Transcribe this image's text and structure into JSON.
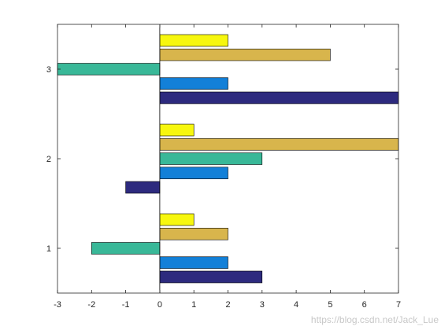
{
  "chart_data": {
    "type": "bar",
    "orientation": "horizontal",
    "categories": [
      "1",
      "2",
      "3"
    ],
    "series": [
      {
        "values": [
          3,
          -1,
          7
        ],
        "color": "#2d2a7e"
      },
      {
        "values": [
          2,
          2,
          2
        ],
        "color": "#1380d8"
      },
      {
        "values": [
          -2,
          3,
          -3
        ],
        "color": "#39b898"
      },
      {
        "values": [
          2,
          7,
          5
        ],
        "color": "#d8b54c"
      },
      {
        "values": [
          1,
          1,
          2
        ],
        "color": "#f7f70e"
      }
    ],
    "xlim": [
      -3,
      7
    ],
    "x_ticks": [
      "-3",
      "-2",
      "-1",
      "0",
      "1",
      "2",
      "3",
      "4",
      "5",
      "6",
      "7"
    ],
    "y_ticks": [
      "1",
      "2",
      "3"
    ],
    "title": "",
    "xlabel": "",
    "ylabel": "",
    "grid": false,
    "bar_edge_color": "#000000"
  },
  "watermark": "https://blog.csdn.net/Jack_Lue"
}
